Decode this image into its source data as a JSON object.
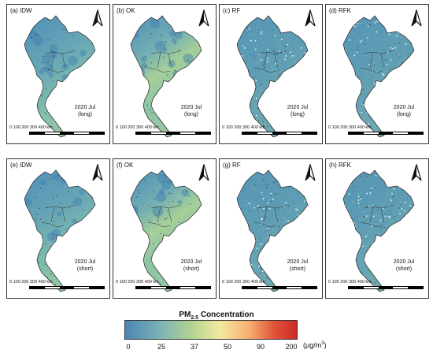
{
  "panels": [
    {
      "label": "(a) IDW",
      "date": "2020 Jul",
      "period": "(long)",
      "scale_text": "0   100 200 300 400 km",
      "style": "smooth"
    },
    {
      "label": "(b) OK",
      "date": "2020 Jul",
      "period": "(long)",
      "scale_text": "0   100 200 300 400 km",
      "style": "ok"
    },
    {
      "label": "(c) RF",
      "date": "2020 Jul",
      "period": "(long)",
      "scale_text": "0   100 200 300 400 km",
      "style": "rf"
    },
    {
      "label": "(d) RFK",
      "date": "2020 Jul",
      "period": "(long)",
      "scale_text": "0   100 200 300 400 km",
      "style": "rf"
    },
    {
      "label": "(e) IDW",
      "date": "2020 Jul",
      "period": "(short)",
      "scale_text": "0   100 200 300 400 km",
      "style": "smooth"
    },
    {
      "label": "(f) OK",
      "date": "2020 Jul",
      "period": "(short)",
      "scale_text": "0   100 200 300 400 km",
      "style": "ok"
    },
    {
      "label": "(g) RF",
      "date": "2020 Jul",
      "period": "(short)",
      "scale_text": "0   100 200 300 400 km",
      "style": "rf"
    },
    {
      "label": "(h) RFK",
      "date": "2020 Jul",
      "period": "(short)",
      "scale_text": "0   100 200 300 400 km",
      "style": "rf"
    }
  ],
  "legend": {
    "title_main": "PM",
    "title_sub": "2.5",
    "title_rest": " Concentration",
    "ticks": [
      "0",
      "25",
      "37",
      "50",
      "90",
      "200"
    ],
    "unit_main": "(μg/m",
    "unit_sup": "3",
    "unit_close": ")",
    "colors": [
      "#4a85b6",
      "#7fb7b2",
      "#b7d590",
      "#f3e9a2",
      "#f7b070",
      "#e05238",
      "#cc2a29"
    ]
  }
}
